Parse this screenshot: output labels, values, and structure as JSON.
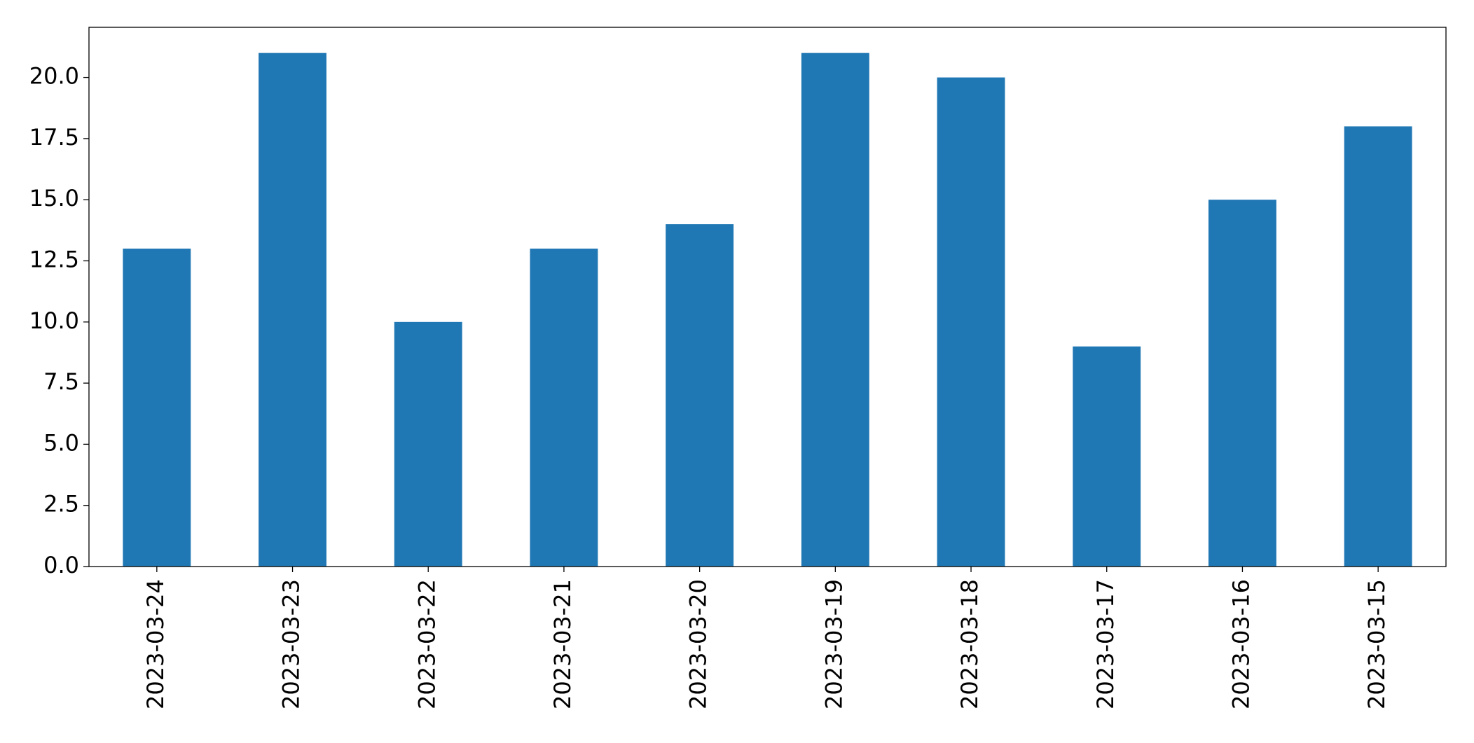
{
  "chart_data": {
    "type": "bar",
    "categories": [
      "2023-03-24",
      "2023-03-23",
      "2023-03-22",
      "2023-03-21",
      "2023-03-20",
      "2023-03-19",
      "2023-03-18",
      "2023-03-17",
      "2023-03-16",
      "2023-03-15"
    ],
    "values": [
      13,
      21,
      10,
      13,
      14,
      21,
      20,
      9,
      15,
      18
    ],
    "color": "#1f77b4",
    "ylim": [
      0,
      22.05
    ],
    "yticks": [
      {
        "value": 0,
        "label": "0.0"
      },
      2.5,
      {
        "value": 5,
        "label": "5.0"
      },
      7.5,
      {
        "value": 10,
        "label": "10.0"
      },
      12.5,
      {
        "value": 15,
        "label": "15.0"
      },
      17.5,
      {
        "value": 20,
        "label": "20.0"
      }
    ],
    "grid": false
  }
}
